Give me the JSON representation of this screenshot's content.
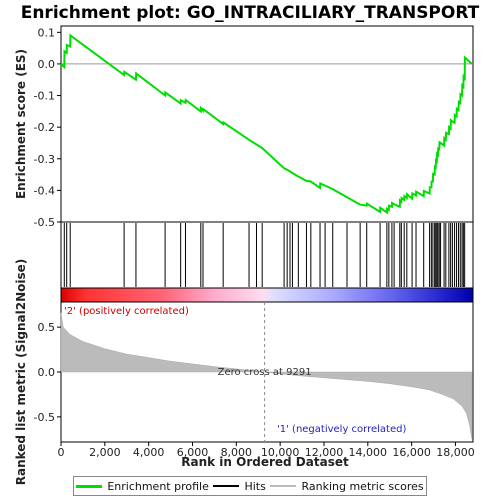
{
  "chart_data": {
    "type": "line",
    "title": "Enrichment plot: GO_INTRACILIARY_TRANSPORT",
    "xlabel": "Rank in Ordered Dataset",
    "ylabel_top": "Enrichment score (ES)",
    "ylabel_bottom": "Ranked list metric (Signal2Noise)",
    "x_range": [
      0,
      18800
    ],
    "x_ticks": [
      0,
      2000,
      4000,
      6000,
      8000,
      10000,
      12000,
      14000,
      16000,
      18000
    ],
    "x_tick_labels": [
      "0",
      "2,000",
      "4,000",
      "6,000",
      "8,000",
      "10,000",
      "12,000",
      "14,000",
      "16,000",
      "18,000"
    ],
    "es_ylim": [
      -0.5,
      0.12
    ],
    "es_ticks": [
      0.1,
      0.0,
      -0.1,
      -0.2,
      -0.3,
      -0.4,
      -0.5
    ],
    "es_tick_labels": [
      "0.1",
      "0.0",
      "-0.1",
      "-0.2",
      "-0.3",
      "-0.4",
      "-0.5"
    ],
    "metric_ylim": [
      -0.78,
      0.78
    ],
    "metric_ticks": [
      0.5,
      0.0,
      -0.5
    ],
    "metric_tick_labels": [
      "0.5",
      "0.0",
      "-0.5"
    ],
    "zero_cross_rank": 9291,
    "zero_cross_label": "Zero cross at 9291",
    "positive_label": "'2' (positively correlated)",
    "negative_label": "'1' (negatively correlated)",
    "hits": [
      150,
      260,
      420,
      2880,
      3420,
      4750,
      5460,
      5680,
      6380,
      6480,
      7400,
      8580,
      8920,
      9180,
      10180,
      10320,
      10450,
      10560,
      10830,
      11200,
      11400,
      11820,
      12050,
      12400,
      13050,
      13650,
      13950,
      14560,
      14870,
      14960,
      15100,
      15200,
      15460,
      15530,
      15660,
      15780,
      16020,
      16200,
      16550,
      16820,
      16900,
      16970,
      17050,
      17100,
      17150,
      17200,
      17260,
      17320,
      17480,
      17560,
      17700,
      17780,
      17860,
      17960,
      18050,
      18140,
      18220,
      18300,
      18360,
      18420
    ],
    "es_points": [
      [
        0,
        0.0
      ],
      [
        150,
        -0.01
      ],
      [
        160,
        0.04
      ],
      [
        260,
        0.035
      ],
      [
        270,
        0.06
      ],
      [
        420,
        0.055
      ],
      [
        430,
        0.09
      ],
      [
        2880,
        -0.035
      ],
      [
        2890,
        -0.025
      ],
      [
        3420,
        -0.05
      ],
      [
        3430,
        -0.03
      ],
      [
        4750,
        -0.1
      ],
      [
        4760,
        -0.09
      ],
      [
        5460,
        -0.125
      ],
      [
        5470,
        -0.115
      ],
      [
        5680,
        -0.123
      ],
      [
        5690,
        -0.114
      ],
      [
        6380,
        -0.15
      ],
      [
        6390,
        -0.14
      ],
      [
        6480,
        -0.148
      ],
      [
        6490,
        -0.143
      ],
      [
        7400,
        -0.19
      ],
      [
        7410,
        -0.185
      ],
      [
        8580,
        -0.24
      ],
      [
        8920,
        -0.255
      ],
      [
        9180,
        -0.266
      ],
      [
        10180,
        -0.33
      ],
      [
        10320,
        -0.335
      ],
      [
        10450,
        -0.34
      ],
      [
        10560,
        -0.345
      ],
      [
        10830,
        -0.356
      ],
      [
        11200,
        -0.37
      ],
      [
        11400,
        -0.372
      ],
      [
        11820,
        -0.392
      ],
      [
        11830,
        -0.378
      ],
      [
        12050,
        -0.385
      ],
      [
        12400,
        -0.396
      ],
      [
        13050,
        -0.422
      ],
      [
        13650,
        -0.445
      ],
      [
        13950,
        -0.448
      ],
      [
        13960,
        -0.442
      ],
      [
        14560,
        -0.468
      ],
      [
        14570,
        -0.455
      ],
      [
        14870,
        -0.47
      ],
      [
        14880,
        -0.458
      ],
      [
        14960,
        -0.462
      ],
      [
        14970,
        -0.448
      ],
      [
        15100,
        -0.452
      ],
      [
        15110,
        -0.44
      ],
      [
        15200,
        -0.444
      ],
      [
        15460,
        -0.452
      ],
      [
        15470,
        -0.432
      ],
      [
        15530,
        -0.436
      ],
      [
        15540,
        -0.424
      ],
      [
        15660,
        -0.43
      ],
      [
        15670,
        -0.418
      ],
      [
        15780,
        -0.424
      ],
      [
        15790,
        -0.412
      ],
      [
        16020,
        -0.426
      ],
      [
        16030,
        -0.41
      ],
      [
        16200,
        -0.416
      ],
      [
        16210,
        -0.404
      ],
      [
        16550,
        -0.418
      ],
      [
        16560,
        -0.402
      ],
      [
        16820,
        -0.41
      ],
      [
        16830,
        -0.39
      ],
      [
        16900,
        -0.39
      ],
      [
        16910,
        -0.372
      ],
      [
        16970,
        -0.372
      ],
      [
        16980,
        -0.348
      ],
      [
        17050,
        -0.35
      ],
      [
        17060,
        -0.326
      ],
      [
        17100,
        -0.328
      ],
      [
        17110,
        -0.305
      ],
      [
        17150,
        -0.308
      ],
      [
        17160,
        -0.285
      ],
      [
        17200,
        -0.288
      ],
      [
        17210,
        -0.268
      ],
      [
        17260,
        -0.27
      ],
      [
        17270,
        -0.248
      ],
      [
        17320,
        -0.25
      ],
      [
        17480,
        -0.258
      ],
      [
        17490,
        -0.235
      ],
      [
        17560,
        -0.24
      ],
      [
        17570,
        -0.218
      ],
      [
        17700,
        -0.222
      ],
      [
        17710,
        -0.2
      ],
      [
        17780,
        -0.205
      ],
      [
        17790,
        -0.178
      ],
      [
        17860,
        -0.182
      ],
      [
        17960,
        -0.186
      ],
      [
        17970,
        -0.162
      ],
      [
        18050,
        -0.166
      ],
      [
        18060,
        -0.142
      ],
      [
        18140,
        -0.146
      ],
      [
        18150,
        -0.12
      ],
      [
        18220,
        -0.124
      ],
      [
        18230,
        -0.096
      ],
      [
        18300,
        -0.1
      ],
      [
        18310,
        -0.068
      ],
      [
        18360,
        -0.072
      ],
      [
        18370,
        -0.04
      ],
      [
        18420,
        -0.045
      ],
      [
        18430,
        0.02
      ],
      [
        18750,
        0.0
      ]
    ],
    "ranked_metric_samples": [
      [
        0,
        0.66
      ],
      [
        100,
        0.5
      ],
      [
        400,
        0.42
      ],
      [
        1000,
        0.34
      ],
      [
        2000,
        0.26
      ],
      [
        3000,
        0.2
      ],
      [
        4000,
        0.16
      ],
      [
        5000,
        0.12
      ],
      [
        6000,
        0.09
      ],
      [
        7000,
        0.06
      ],
      [
        8000,
        0.035
      ],
      [
        9291,
        0.0
      ],
      [
        10000,
        -0.02
      ],
      [
        11000,
        -0.045
      ],
      [
        12000,
        -0.065
      ],
      [
        13000,
        -0.085
      ],
      [
        14000,
        -0.105
      ],
      [
        15000,
        -0.13
      ],
      [
        16000,
        -0.165
      ],
      [
        16800,
        -0.2
      ],
      [
        17400,
        -0.25
      ],
      [
        17900,
        -0.3
      ],
      [
        18300,
        -0.38
      ],
      [
        18500,
        -0.46
      ],
      [
        18650,
        -0.6
      ],
      [
        18750,
        -0.75
      ]
    ]
  },
  "legend": {
    "items": [
      {
        "label": "Enrichment profile",
        "color": "#00dd00"
      },
      {
        "label": "Hits",
        "color": "#000000"
      },
      {
        "label": "Ranking metric scores",
        "color": "#bbbbbb"
      }
    ]
  },
  "colors": {
    "es_line": "#00dd00",
    "metric_fill": "#bbbbbb",
    "positive_text": "#cc0000",
    "negative_text": "#2222cc"
  }
}
